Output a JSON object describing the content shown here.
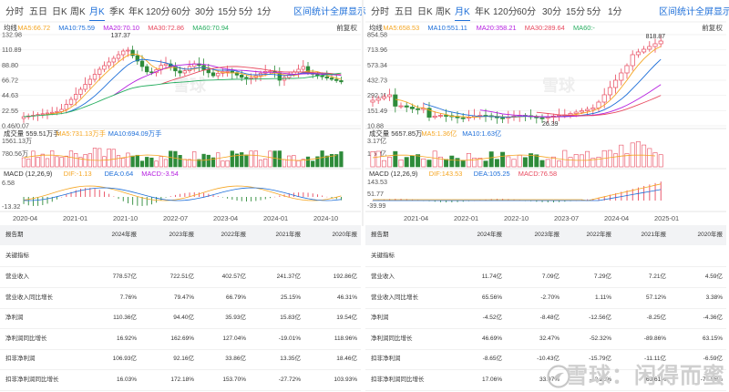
{
  "left": {
    "tabs": [
      "分时",
      "五日",
      "日K",
      "周K",
      "月K",
      "季K",
      "年K",
      "120分",
      "60分",
      "30分",
      "15分",
      "5分",
      "1分"
    ],
    "active_tab": "月K",
    "tools": {
      "interval_stats": "区间统计",
      "fullscreen": "全屏显示",
      "adjust": "前复权"
    },
    "ma_legend": [
      {
        "label": "均线",
        "color": "#333333"
      },
      {
        "label": "MA5:66.72",
        "color": "#f5a623"
      },
      {
        "label": "MA10:75.59",
        "color": "#1e6fd9"
      },
      {
        "label": "MA20:70.10",
        "color": "#b620e0"
      },
      {
        "label": "MA30:72.86",
        "color": "#e84a5f"
      },
      {
        "label": "MA60:70.94",
        "color": "#27ae60"
      }
    ],
    "price_axis": [
      "132.98",
      "110.89",
      "88.80",
      "66.72",
      "44.63",
      "22.55",
      "0.46/0.07"
    ],
    "max_label": "137.37",
    "volume_legend": [
      {
        "label": "成交量 559.51万手",
        "color": "#333333"
      },
      {
        "label": "MA5:731.13万手",
        "color": "#f5a623"
      },
      {
        "label": "MA10:694.09万手",
        "color": "#1e6fd9"
      }
    ],
    "volume_axis": [
      "1561.13万",
      "780.56万"
    ],
    "macd_legend": [
      {
        "label": "MACD (12,26,9)",
        "color": "#333333"
      },
      {
        "label": "DIF:-1.13",
        "color": "#f5a623"
      },
      {
        "label": "DEA:0.64",
        "color": "#1e6fd9"
      },
      {
        "label": "MACD:-3.54",
        "color": "#b620e0"
      }
    ],
    "macd_axis": [
      "6.58",
      "-13.32"
    ],
    "date_axis": [
      "2020-04",
      "2021-01",
      "2021-10",
      "2022-07",
      "2023-04",
      "2024-01",
      "2024-10"
    ],
    "watermark": "雪球",
    "table": {
      "headers": [
        "报告期",
        "2024年报",
        "2023年报",
        "2022年报",
        "2021年报",
        "2020年报"
      ],
      "section": "关键指标",
      "rows": [
        [
          "营业收入",
          "778.57亿",
          "722.51亿",
          "402.57亿",
          "241.37亿",
          "192.86亿"
        ],
        [
          "营业收入同比增长",
          "7.76%",
          "79.47%",
          "66.79%",
          "25.15%",
          "46.31%"
        ],
        [
          "净利润",
          "110.36亿",
          "94.40亿",
          "35.93亿",
          "15.83亿",
          "19.54亿"
        ],
        [
          "净利润同比增长",
          "16.92%",
          "162.69%",
          "127.04%",
          "-19.01%",
          "118.96%"
        ],
        [
          "扣非净利润",
          "106.93亿",
          "92.16亿",
          "33.86亿",
          "13.35亿",
          "18.46亿"
        ],
        [
          "扣非净利润同比增长",
          "16.03%",
          "172.18%",
          "153.70%",
          "-27.72%",
          "103.93%"
        ]
      ]
    }
  },
  "right": {
    "tabs": [
      "分时",
      "五日",
      "日K",
      "周K",
      "月K",
      "年K",
      "120分",
      "60分",
      "30分",
      "15分",
      "5分",
      "1分"
    ],
    "active_tab": "月K",
    "tools": {
      "interval_stats": "区间统计",
      "fullscreen": "全屏显示",
      "adjust": "前复权"
    },
    "ma_legend": [
      {
        "label": "均线",
        "color": "#333333"
      },
      {
        "label": "MA5:658.53",
        "color": "#f5a623"
      },
      {
        "label": "MA10:551.11",
        "color": "#1e6fd9"
      },
      {
        "label": "MA20:358.21",
        "color": "#b620e0"
      },
      {
        "label": "MA30:289.64",
        "color": "#e84a5f"
      },
      {
        "label": "MA60:-",
        "color": "#27ae60"
      }
    ],
    "price_axis": [
      "854.58",
      "713.96",
      "573.34",
      "432.73",
      "292.11",
      "151.49",
      "10.88"
    ],
    "max_label": "818.87",
    "min_label": "26.39",
    "volume_legend": [
      {
        "label": "成交量 5657.85万",
        "color": "#333333"
      },
      {
        "label": "MA5:1.36亿",
        "color": "#f5a623"
      },
      {
        "label": "MA10:1.63亿",
        "color": "#1e6fd9"
      }
    ],
    "volume_axis": [
      "3.17亿",
      "1.59亿"
    ],
    "macd_legend": [
      {
        "label": "MACD (12,26,9)",
        "color": "#333333"
      },
      {
        "label": "DIF:143.53",
        "color": "#f5a623"
      },
      {
        "label": "DEA:105.25",
        "color": "#1e6fd9"
      },
      {
        "label": "MACD:76.58",
        "color": "#e84a5f"
      }
    ],
    "macd_axis": [
      "143.53",
      "51.77",
      "-39.99"
    ],
    "date_axis": [
      "2021-04",
      "2022-01",
      "2022-10",
      "2023-07",
      "2024-04",
      "2025-01"
    ],
    "watermark": "雪球",
    "table": {
      "headers": [
        "报告期",
        "2024年报",
        "2023年报",
        "2022年报",
        "2021年报",
        "2020年报"
      ],
      "section": "关键指标",
      "rows": [
        [
          "营业收入",
          "11.74亿",
          "7.09亿",
          "7.29亿",
          "7.21亿",
          "4.59亿"
        ],
        [
          "营业收入同比增长",
          "65.56%",
          "-2.70%",
          "1.11%",
          "57.12%",
          "3.38%"
        ],
        [
          "净利润",
          "-4.52亿",
          "-8.48亿",
          "-12.56亿",
          "-8.25亿",
          "-4.36亿"
        ],
        [
          "净利润同比增长",
          "46.69%",
          "32.47%",
          "-52.32%",
          "-89.86%",
          "63.15%"
        ],
        [
          "扣非净利润",
          "-8.65亿",
          "-10.43亿",
          "-15.79亿",
          "-11.11亿",
          "-6.59亿"
        ],
        [
          "扣非净利润同比增长",
          "17.06%",
          "33.97%",
          "-42.20%",
          "-68.61%",
          "-74.86%"
        ]
      ]
    }
  },
  "footer_watermark": "雪球：闲得而蜜"
}
